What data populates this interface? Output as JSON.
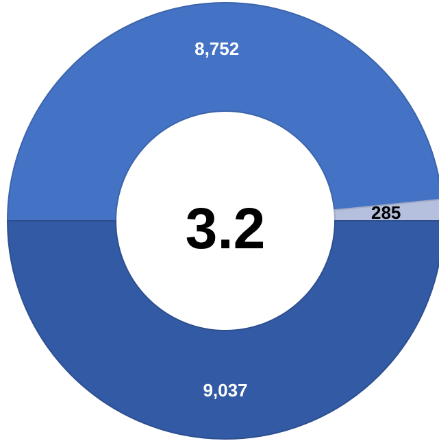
{
  "chart_data": {
    "type": "pie",
    "variant": "donut",
    "center_text": "3.2",
    "slices": [
      {
        "label": "8,752",
        "value": 8752,
        "color": "#4472C4",
        "label_color": "#FFFFFF"
      },
      {
        "label": "285",
        "value": 285,
        "color": "#B4C0DE",
        "label_color": "#000000"
      },
      {
        "label": "9,037",
        "value": 9037,
        "color": "#335AA4",
        "label_color": "#FFFFFF"
      }
    ],
    "title": "",
    "legend": false
  }
}
